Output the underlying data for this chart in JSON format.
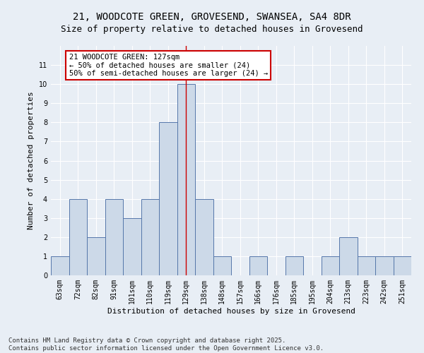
{
  "title1": "21, WOODCOTE GREEN, GROVESEND, SWANSEA, SA4 8DR",
  "title2": "Size of property relative to detached houses in Grovesend",
  "xlabel": "Distribution of detached houses by size in Grovesend",
  "ylabel": "Number of detached properties",
  "categories": [
    "63sqm",
    "72sqm",
    "82sqm",
    "91sqm",
    "101sqm",
    "110sqm",
    "119sqm",
    "129sqm",
    "138sqm",
    "148sqm",
    "157sqm",
    "166sqm",
    "176sqm",
    "185sqm",
    "195sqm",
    "204sqm",
    "213sqm",
    "223sqm",
    "242sqm",
    "251sqm"
  ],
  "values": [
    1,
    4,
    2,
    4,
    3,
    4,
    8,
    10,
    4,
    1,
    0,
    1,
    0,
    1,
    0,
    1,
    2,
    1,
    1,
    1
  ],
  "bar_color": "#ccd9e8",
  "bar_edge_color": "#5577aa",
  "highlight_index": 7,
  "highlight_line_color": "#cc0000",
  "annotation_title": "21 WOODCOTE GREEN: 127sqm",
  "annotation_line1": "← 50% of detached houses are smaller (24)",
  "annotation_line2": "50% of semi-detached houses are larger (24) →",
  "annotation_box_color": "#ffffff",
  "annotation_box_edge_color": "#cc0000",
  "ylim": [
    0,
    12
  ],
  "yticks": [
    0,
    1,
    2,
    3,
    4,
    5,
    6,
    7,
    8,
    9,
    10,
    11
  ],
  "background_color": "#e8eef5",
  "footer1": "Contains HM Land Registry data © Crown copyright and database right 2025.",
  "footer2": "Contains public sector information licensed under the Open Government Licence v3.0.",
  "title1_fontsize": 10,
  "title2_fontsize": 9,
  "xlabel_fontsize": 8,
  "ylabel_fontsize": 8,
  "tick_fontsize": 7,
  "annotation_fontsize": 7.5,
  "footer_fontsize": 6.5
}
